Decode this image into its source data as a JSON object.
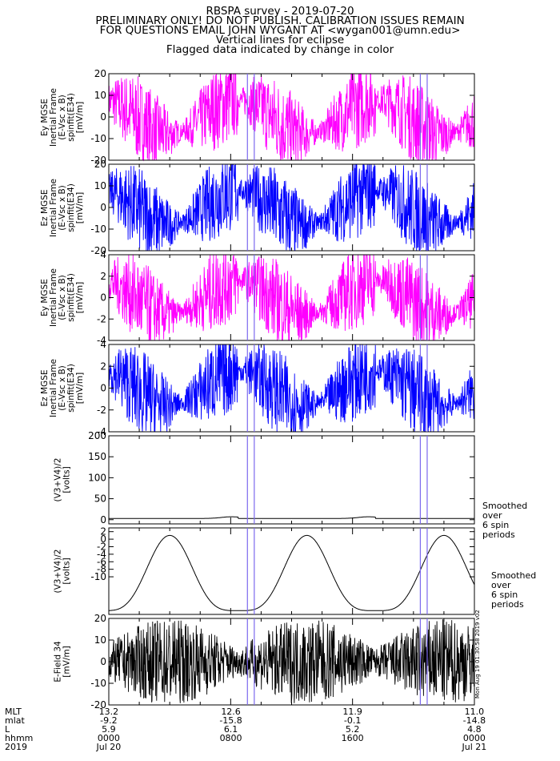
{
  "header": {
    "line1": "RBSPA survey - 2019-07-20",
    "line2": "PRELIMINARY ONLY! DO NOT PUBLISH. CALIBRATION ISSUES REMAIN",
    "line3": "FOR QUESTIONS EMAIL JOHN WYGANT AT <wygan001@umn.edu>",
    "line4": "Vertical lines for eclipse",
    "line5": "Flagged data indicated by change in color"
  },
  "colors": {
    "magenta": "#ff00ff",
    "blue": "#0000ff",
    "black": "#000000",
    "eclipse": "#7b68ee"
  },
  "chart_data": [
    {
      "type": "line",
      "ylabel": [
        "Ey MGSE",
        "Inertial Frame",
        "(E-Vsc x B)",
        "spinfit(E34)",
        "[mV/m]"
      ],
      "ylim": [
        -20,
        20
      ],
      "yticks": [
        "20",
        "10",
        "0",
        "-10",
        "-20"
      ],
      "color": "magenta"
    },
    {
      "type": "line",
      "ylabel": [
        "Ez MGSE",
        "Inertial Frame",
        "(E-Vsc x B)",
        "spinfit(E34)",
        "[mV/m]"
      ],
      "ylim": [
        -20,
        20
      ],
      "yticks": [
        "20",
        "10",
        "0",
        "-10",
        "-20"
      ],
      "color": "blue"
    },
    {
      "type": "line",
      "ylabel": [
        "Ey MGSE",
        "Inertial Frame",
        "(E-Vsc x B)",
        "spinfit(E34)",
        "[mV/m]"
      ],
      "ylim": [
        -4,
        4
      ],
      "yticks": [
        "4",
        "2",
        "0",
        "-2",
        "-4"
      ],
      "color": "magenta"
    },
    {
      "type": "line",
      "ylabel": [
        "Ez MGSE",
        "Inertial Frame",
        "(E-Vsc x B)",
        "spinfit(E34)",
        "[mV/m]"
      ],
      "ylim": [
        -4,
        4
      ],
      "yticks": [
        "4",
        "2",
        "0",
        "-2",
        "-4"
      ],
      "color": "blue"
    },
    {
      "type": "line",
      "ylabel": [
        "(V3+V4)/2",
        "[volts]"
      ],
      "ylim": [
        -10,
        200
      ],
      "yticks": [
        "200",
        "150",
        "100",
        "50",
        "0"
      ],
      "color": "black",
      "note": [
        "Smoothed",
        "over",
        "6 spin",
        "periods"
      ]
    },
    {
      "type": "line",
      "ylabel": [
        "(V3+V4)/2",
        "[volts]"
      ],
      "ylim": [
        -20,
        3
      ],
      "yticks": [
        "2",
        "0",
        "-2",
        "-4",
        "-6",
        "-8",
        "-10"
      ],
      "color": "black",
      "note": [
        "Smoothed",
        "over",
        "6 spin",
        "periods"
      ]
    },
    {
      "type": "line",
      "ylabel": [
        "E-Field 34",
        "[mV/m]"
      ],
      "ylim": [
        -20,
        20
      ],
      "yticks": [
        "20",
        "10",
        "0",
        "-10",
        "-20"
      ],
      "color": "black"
    }
  ],
  "eclipse_hours": [
    9.1,
    9.55,
    20.45,
    20.9
  ],
  "eclipse_hours_b": [],
  "x_axis": {
    "row_labels": [
      "MLT",
      "mlat",
      "L",
      "hhmm",
      "2019"
    ],
    "columns": [
      {
        "hour": 0,
        "values": [
          "13.2",
          "-9.2",
          "5.9",
          "0000",
          "Jul 20"
        ]
      },
      {
        "hour": 8,
        "values": [
          "12.6",
          "-15.8",
          "6.1",
          "0800",
          ""
        ]
      },
      {
        "hour": 16,
        "values": [
          "11.9",
          "-0.1",
          "5.2",
          "1600",
          ""
        ]
      },
      {
        "hour": 24,
        "values": [
          "11.0",
          "-14.8",
          "4.8",
          "0000",
          "Jul 21"
        ]
      }
    ]
  },
  "stamp": "Mon Aug 19 01:30:58 2019 v02"
}
